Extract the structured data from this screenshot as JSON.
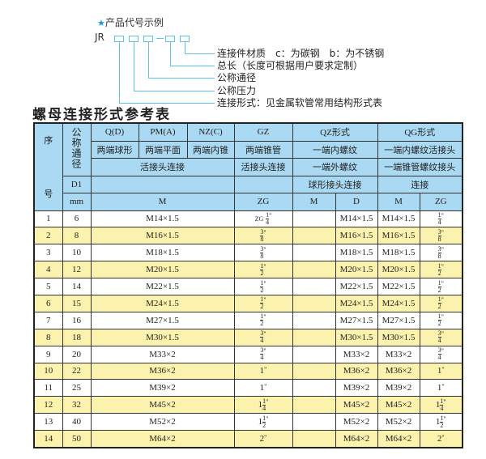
{
  "example": {
    "title": "产品代号示例",
    "code_prefix": "JR",
    "labels": [
      "连接件材质　c：为碳钢　b：为不锈钢",
      "总长（长度可根据用户要求定制）",
      "公称通径",
      "公称压力",
      "连接形式：见金属软管常用结构形式表"
    ]
  },
  "table_title": "螺母连接形式参考表",
  "header": {
    "seq": "序",
    "seq2": "号",
    "dn": "公称通径",
    "d1": "D1",
    "mm": "mm",
    "q": "Q(D)",
    "pm": "PM(A)",
    "nz": "NZ(C)",
    "gz": "GZ",
    "qz": "QZ形式",
    "qg": "QG形式",
    "q_desc": "两端球形",
    "pm_desc": "两端平面",
    "nz_desc": "两端内锥",
    "gz_desc": "两端锥管",
    "qz_desc1": "一端内螺纹",
    "qg_desc1": "一端内螺纹活接头",
    "union": "活接头连接",
    "gz_union": "活接头连接",
    "qz_desc2": "一端外螺纹",
    "qg_desc2": "一端锥管螺纹接头",
    "qz_desc3": "球形接头连接",
    "qg_desc3": "连接",
    "col_m": "M",
    "col_zg": "ZG",
    "col_qz_m": "M",
    "col_qz_d": "D",
    "col_qg_m": "M",
    "col_qg_zg": "ZG"
  },
  "rows": [
    {
      "no": "1",
      "dn": "6",
      "m": "M14×1.5",
      "zg": {
        "pre": "ZG",
        "whole": "",
        "num": "1",
        "den": "4",
        "suf": "\""
      },
      "qz_m": "",
      "qz_d": "M14×1.5",
      "qg_m": "M14×1.5",
      "qg_zg": {
        "whole": "",
        "num": "1",
        "den": "4",
        "suf": "\""
      }
    },
    {
      "no": "2",
      "dn": "8",
      "m": "M16×1.5",
      "zg": {
        "whole": "",
        "num": "3",
        "den": "8",
        "suf": "\""
      },
      "qz_m": "",
      "qz_d": "M16×1.5",
      "qg_m": "M16×1.5",
      "qg_zg": {
        "whole": "",
        "num": "3",
        "den": "8",
        "suf": "\""
      }
    },
    {
      "no": "3",
      "dn": "10",
      "m": "M18×1.5",
      "zg": {
        "whole": "",
        "num": "3",
        "den": "8",
        "suf": "\""
      },
      "qz_m": "",
      "qz_d": "M18×1.5",
      "qg_m": "M18×1.5",
      "qg_zg": {
        "whole": "",
        "num": "3",
        "den": "8",
        "suf": "\""
      }
    },
    {
      "no": "4",
      "dn": "12",
      "m": "M20×1.5",
      "zg": {
        "whole": "",
        "num": "1",
        "den": "2",
        "suf": "\""
      },
      "qz_m": "",
      "qz_d": "M20×1.5",
      "qg_m": "M20×1.5",
      "qg_zg": {
        "whole": "",
        "num": "1",
        "den": "2",
        "suf": "\""
      }
    },
    {
      "no": "5",
      "dn": "14",
      "m": "M22×1.5",
      "zg": {
        "whole": "",
        "num": "1",
        "den": "2",
        "suf": "\""
      },
      "qz_m": "",
      "qz_d": "M22×1.5",
      "qg_m": "M22×1.5",
      "qg_zg": {
        "whole": "",
        "num": "1",
        "den": "2",
        "suf": "\""
      }
    },
    {
      "no": "6",
      "dn": "15",
      "m": "M24×1.5",
      "zg": {
        "whole": "",
        "num": "1",
        "den": "2",
        "suf": "\""
      },
      "qz_m": "",
      "qz_d": "M24×1.5",
      "qg_m": "M24×1.5",
      "qg_zg": {
        "whole": "",
        "num": "1",
        "den": "2",
        "suf": "\""
      }
    },
    {
      "no": "7",
      "dn": "16",
      "m": "M27×1.5",
      "zg": {
        "whole": "",
        "num": "1",
        "den": "2",
        "suf": "\""
      },
      "qz_m": "",
      "qz_d": "M27×1.5",
      "qg_m": "M27×1.5",
      "qg_zg": {
        "whole": "",
        "num": "1",
        "den": "2",
        "suf": "\""
      }
    },
    {
      "no": "8",
      "dn": "18",
      "m": "M30×1.5",
      "zg": {
        "whole": "",
        "num": "3",
        "den": "4",
        "suf": "\""
      },
      "qz_m": "",
      "qz_d": "M30×1.5",
      "qg_m": "M30×1.5",
      "qg_zg": {
        "whole": "",
        "num": "3",
        "den": "4",
        "suf": "\""
      }
    },
    {
      "no": "9",
      "dn": "20",
      "m": "M33×2",
      "zg": {
        "whole": "",
        "num": "3",
        "den": "4",
        "suf": "\""
      },
      "qz_m": "",
      "qz_d": "M33×2",
      "qg_m": "M33×2",
      "qg_zg": {
        "whole": "",
        "num": "3",
        "den": "4",
        "suf": "\""
      }
    },
    {
      "no": "10",
      "dn": "22",
      "m": "M36×2",
      "zg": {
        "whole": "1",
        "num": "",
        "den": "",
        "suf": "\""
      },
      "qz_m": "",
      "qz_d": "M36×2",
      "qg_m": "M36×2",
      "qg_zg": {
        "whole": "1",
        "num": "",
        "den": "",
        "suf": "\""
      }
    },
    {
      "no": "11",
      "dn": "25",
      "m": "M39×2",
      "zg": {
        "whole": "1",
        "num": "",
        "den": "",
        "suf": "\""
      },
      "qz_m": "",
      "qz_d": "M39×2",
      "qg_m": "M39×2",
      "qg_zg": {
        "whole": "1",
        "num": "",
        "den": "",
        "suf": "\""
      }
    },
    {
      "no": "12",
      "dn": "32",
      "m": "M45×2",
      "zg": {
        "whole": "1",
        "num": "1",
        "den": "4",
        "suf": "\""
      },
      "qz_m": "",
      "qz_d": "M45×2",
      "qg_m": "M45×2",
      "qg_zg": {
        "whole": "1",
        "num": "1",
        "den": "4",
        "suf": "\""
      }
    },
    {
      "no": "13",
      "dn": "40",
      "m": "M52×2",
      "zg": {
        "whole": "1",
        "num": "1",
        "den": "2",
        "suf": "\""
      },
      "qz_m": "",
      "qz_d": "M52×2",
      "qg_m": "M52×2",
      "qg_zg": {
        "whole": "1",
        "num": "1",
        "den": "2",
        "suf": "\""
      }
    },
    {
      "no": "14",
      "dn": "50",
      "m": "M64×2",
      "zg": {
        "whole": "2",
        "num": "",
        "den": "",
        "suf": "\""
      },
      "qz_m": "",
      "qz_d": "M64×2",
      "qg_m": "M64×2",
      "qg_zg": {
        "whole": "2",
        "num": "",
        "den": "",
        "suf": "\""
      }
    }
  ],
  "colors": {
    "header_bg": "#aad9f3",
    "alt_row_bg": "#fbf3ad",
    "accent": "#5cc0e8",
    "star": "#1e9ad6"
  },
  "icons": {
    "title_marker": "star-icon"
  }
}
